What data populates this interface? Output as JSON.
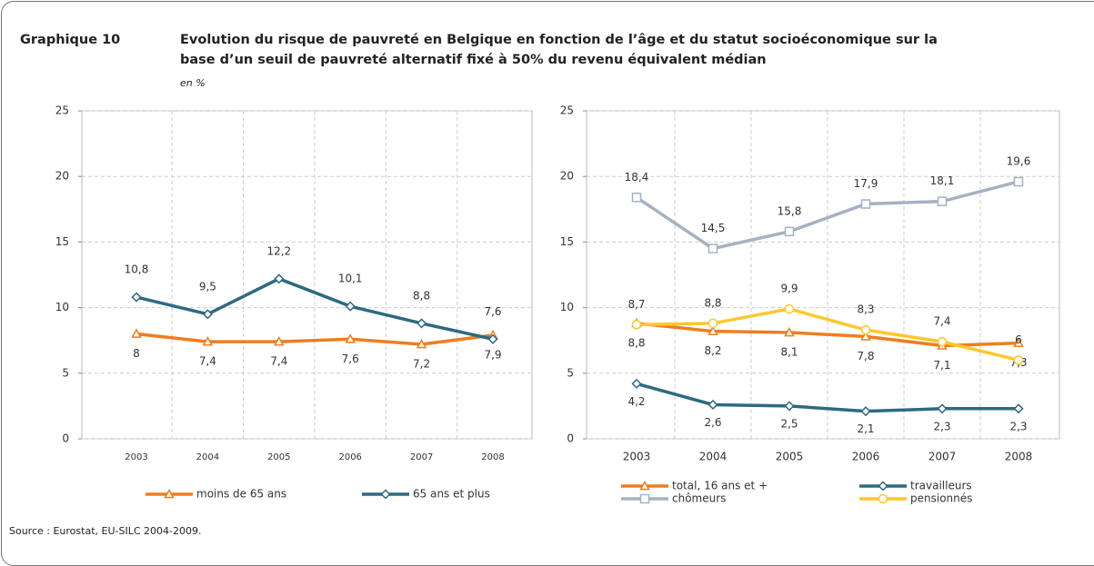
{
  "header": {
    "label": "Graphique 10",
    "title_line1": "Evolution du risque de pauvreté en Belgique en fonction de l’âge et du statut socioéconomique sur la",
    "title_line2": "base d’un seuil de pauvreté alternatif fixé à 50% du revenu équivalent médian",
    "unit": "en %"
  },
  "source": "Source : Eurostat, EU-SILC 2004-2009.",
  "chart_data": [
    {
      "type": "line",
      "categories": [
        "2003",
        "2004",
        "2005",
        "2006",
        "2007",
        "2008"
      ],
      "ylim": [
        0,
        25
      ],
      "yticks": [
        0,
        5,
        10,
        15,
        20,
        25
      ],
      "grid": true,
      "series": [
        {
          "name": "moins de 65 ans",
          "color": "#f07d1e",
          "marker": "triangle",
          "values": [
            8,
            7.4,
            7.4,
            7.6,
            7.2,
            7.9
          ],
          "value_labels": [
            "8",
            "7,4",
            "7,4",
            "7,6",
            "7,2",
            "7,9"
          ]
        },
        {
          "name": "65 ans et plus",
          "color": "#2d6a80",
          "marker": "diamond",
          "values": [
            10.8,
            9.5,
            12.2,
            10.1,
            8.8,
            7.6
          ],
          "value_labels": [
            "10,8",
            "9,5",
            "12,2",
            "10,1",
            "8,8",
            "7,6"
          ]
        }
      ]
    },
    {
      "type": "line",
      "categories": [
        "2003",
        "2004",
        "2005",
        "2006",
        "2007",
        "2008"
      ],
      "ylim": [
        0,
        25
      ],
      "yticks": [
        0,
        5,
        10,
        15,
        20,
        25
      ],
      "grid": true,
      "series": [
        {
          "name": "total, 16 ans et +",
          "color": "#f07d1e",
          "marker": "triangle",
          "values": [
            8.8,
            8.2,
            8.1,
            7.8,
            7.1,
            7.3
          ],
          "value_labels": [
            "8,8",
            "8,2",
            "8,1",
            "7,8",
            "7,1",
            "7,3"
          ]
        },
        {
          "name": "travailleurs",
          "color": "#2d6a80",
          "marker": "diamond",
          "values": [
            4.2,
            2.6,
            2.5,
            2.1,
            2.3,
            2.3
          ],
          "value_labels": [
            "4,2",
            "2,6",
            "2,5",
            "2,1",
            "2,3",
            "2,3"
          ]
        },
        {
          "name": "chômeurs",
          "color": "#a7b1c3",
          "marker": "square",
          "values": [
            18.4,
            14.5,
            15.8,
            17.9,
            18.1,
            19.6
          ],
          "value_labels": [
            "18,4",
            "14,5",
            "15,8",
            "17,9",
            "18,1",
            "19,6"
          ]
        },
        {
          "name": "pensionnés",
          "color": "#ffc72c",
          "marker": "circle",
          "values": [
            8.7,
            8.8,
            9.9,
            8.3,
            7.4,
            6
          ],
          "value_labels": [
            "8,7",
            "8,8",
            "9,9",
            "8,3",
            "7,4",
            "6"
          ]
        }
      ]
    }
  ]
}
